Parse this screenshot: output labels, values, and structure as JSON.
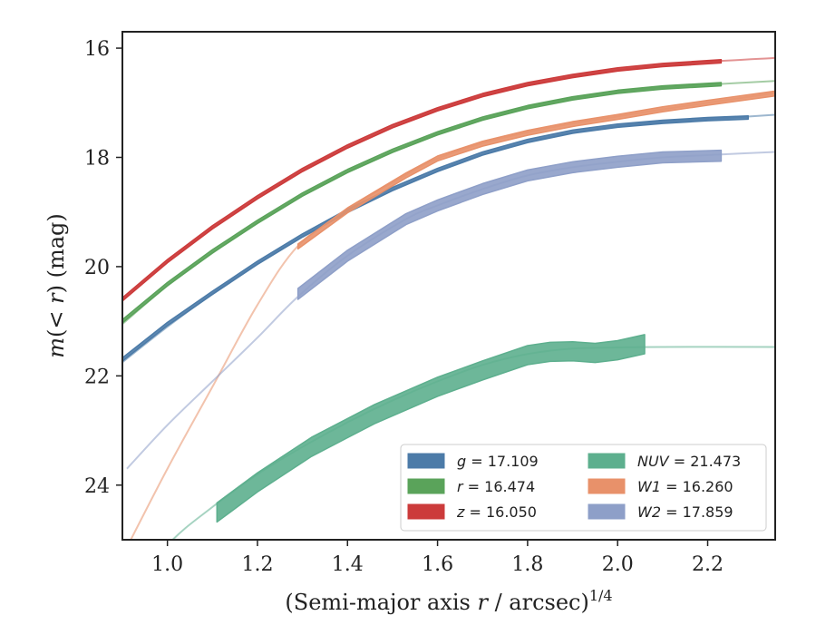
{
  "chart_data": {
    "type": "line",
    "title": "",
    "xlabel_main": "(Semi-major axis ",
    "xlabel_var": "r",
    "xlabel_rest": " / arcsec)",
    "xlabel_sup": "1/4",
    "ylabel_main": "m",
    "ylabel_mid": "(< ",
    "ylabel_var": "r",
    "ylabel_rest": ") (mag)",
    "xlim": [
      0.9,
      2.35
    ],
    "ylim": [
      25.0,
      15.7
    ],
    "y_inverted": true,
    "x_ticks": [
      {
        "value": 1.0,
        "label": "1.0"
      },
      {
        "value": 1.2,
        "label": "1.2"
      },
      {
        "value": 1.4,
        "label": "1.4"
      },
      {
        "value": 1.6,
        "label": "1.6"
      },
      {
        "value": 1.8,
        "label": "1.8"
      },
      {
        "value": 2.0,
        "label": "2.0"
      },
      {
        "value": 2.2,
        "label": "2.2"
      }
    ],
    "y_ticks": [
      {
        "value": 16,
        "label": "16"
      },
      {
        "value": 18,
        "label": "18"
      },
      {
        "value": 20,
        "label": "20"
      },
      {
        "value": 22,
        "label": "22"
      },
      {
        "value": 24,
        "label": "24"
      }
    ],
    "grid": false,
    "legend_position": "lower-right",
    "series": [
      {
        "key": "g",
        "legend_var": "g",
        "legend_value": "= 17.109",
        "color": "#4c7ba8",
        "model": [
          [
            0.9,
            21.75
          ],
          [
            1.0,
            21.1
          ],
          [
            1.1,
            20.5
          ],
          [
            1.2,
            19.95
          ],
          [
            1.3,
            19.45
          ],
          [
            1.4,
            19.0
          ],
          [
            1.5,
            18.6
          ],
          [
            1.6,
            18.25
          ],
          [
            1.7,
            17.95
          ],
          [
            1.8,
            17.72
          ],
          [
            1.9,
            17.55
          ],
          [
            2.0,
            17.43
          ],
          [
            2.1,
            17.35
          ],
          [
            2.2,
            17.3
          ],
          [
            2.35,
            17.22
          ]
        ],
        "data": [
          [
            0.9,
            21.7
          ],
          [
            1.0,
            21.05
          ],
          [
            1.1,
            20.48
          ],
          [
            1.2,
            19.93
          ],
          [
            1.3,
            19.43
          ],
          [
            1.4,
            18.98
          ],
          [
            1.5,
            18.58
          ],
          [
            1.6,
            18.23
          ],
          [
            1.7,
            17.93
          ],
          [
            1.8,
            17.7
          ],
          [
            1.9,
            17.53
          ],
          [
            2.0,
            17.42
          ],
          [
            2.1,
            17.35
          ],
          [
            2.2,
            17.3
          ],
          [
            2.29,
            17.27
          ]
        ],
        "data_width": 0.06
      },
      {
        "key": "r",
        "legend_var": "r",
        "legend_value": "= 16.474",
        "color": "#5aa35a",
        "model": [
          [
            0.9,
            21.05
          ],
          [
            1.0,
            20.35
          ],
          [
            1.1,
            19.75
          ],
          [
            1.2,
            19.2
          ],
          [
            1.3,
            18.7
          ],
          [
            1.4,
            18.27
          ],
          [
            1.5,
            17.9
          ],
          [
            1.6,
            17.57
          ],
          [
            1.7,
            17.3
          ],
          [
            1.8,
            17.08
          ],
          [
            1.9,
            16.92
          ],
          [
            2.0,
            16.8
          ],
          [
            2.1,
            16.72
          ],
          [
            2.2,
            16.67
          ],
          [
            2.35,
            16.6
          ]
        ],
        "data": [
          [
            0.9,
            21.0
          ],
          [
            1.0,
            20.32
          ],
          [
            1.1,
            19.72
          ],
          [
            1.2,
            19.18
          ],
          [
            1.3,
            18.68
          ],
          [
            1.4,
            18.25
          ],
          [
            1.5,
            17.88
          ],
          [
            1.6,
            17.56
          ],
          [
            1.7,
            17.29
          ],
          [
            1.8,
            17.08
          ],
          [
            1.9,
            16.92
          ],
          [
            2.0,
            16.8
          ],
          [
            2.1,
            16.72
          ],
          [
            2.23,
            16.66
          ]
        ],
        "data_width": 0.06
      },
      {
        "key": "z",
        "legend_var": "z",
        "legend_value": "= 16.050",
        "color": "#cc3b3b",
        "model": [
          [
            0.9,
            20.62
          ],
          [
            1.0,
            19.92
          ],
          [
            1.1,
            19.3
          ],
          [
            1.2,
            18.75
          ],
          [
            1.3,
            18.25
          ],
          [
            1.4,
            17.82
          ],
          [
            1.5,
            17.45
          ],
          [
            1.6,
            17.13
          ],
          [
            1.7,
            16.87
          ],
          [
            1.8,
            16.67
          ],
          [
            1.9,
            16.52
          ],
          [
            2.0,
            16.4
          ],
          [
            2.1,
            16.32
          ],
          [
            2.2,
            16.25
          ],
          [
            2.35,
            16.18
          ]
        ],
        "data": [
          [
            0.9,
            20.6
          ],
          [
            1.0,
            19.9
          ],
          [
            1.1,
            19.28
          ],
          [
            1.2,
            18.73
          ],
          [
            1.3,
            18.23
          ],
          [
            1.4,
            17.8
          ],
          [
            1.5,
            17.43
          ],
          [
            1.6,
            17.12
          ],
          [
            1.7,
            16.86
          ],
          [
            1.8,
            16.66
          ],
          [
            1.9,
            16.51
          ],
          [
            2.0,
            16.39
          ],
          [
            2.1,
            16.31
          ],
          [
            2.23,
            16.24
          ]
        ],
        "data_width": 0.06
      },
      {
        "key": "NUV",
        "legend_var": "NUV",
        "legend_value": "= 21.473",
        "color": "#5daf8e",
        "model": [
          [
            0.9,
            26.2
          ],
          [
            1.0,
            25.1
          ],
          [
            1.1,
            24.4
          ],
          [
            1.2,
            23.8
          ],
          [
            1.3,
            23.3
          ],
          [
            1.4,
            22.85
          ],
          [
            1.5,
            22.45
          ],
          [
            1.6,
            22.1
          ],
          [
            1.7,
            21.8
          ],
          [
            1.8,
            21.6
          ],
          [
            1.9,
            21.5
          ],
          [
            2.0,
            21.48
          ],
          [
            2.1,
            21.47
          ],
          [
            2.35,
            21.47
          ]
        ],
        "data": [
          [
            1.11,
            24.5
          ],
          [
            1.2,
            23.95
          ],
          [
            1.32,
            23.3
          ],
          [
            1.46,
            22.7
          ],
          [
            1.6,
            22.2
          ],
          [
            1.7,
            21.9
          ],
          [
            1.8,
            21.62
          ],
          [
            1.85,
            21.56
          ],
          [
            1.9,
            21.55
          ],
          [
            1.95,
            21.58
          ],
          [
            2.0,
            21.53
          ],
          [
            2.06,
            21.42
          ]
        ],
        "data_width": 0.35
      },
      {
        "key": "W1",
        "legend_var": "W1",
        "legend_value": "= 16.260",
        "color": "#e8916a",
        "model": [
          [
            0.9,
            25.3
          ],
          [
            1.0,
            23.7
          ],
          [
            1.1,
            22.2
          ],
          [
            1.2,
            20.7
          ],
          [
            1.29,
            19.62
          ],
          [
            1.4,
            18.95
          ],
          [
            1.53,
            18.32
          ],
          [
            1.6,
            18.02
          ],
          [
            1.7,
            17.74
          ],
          [
            1.8,
            17.54
          ],
          [
            1.9,
            17.38
          ],
          [
            2.0,
            17.25
          ],
          [
            2.1,
            17.12
          ],
          [
            2.2,
            17.0
          ],
          [
            2.35,
            16.82
          ]
        ],
        "data": [
          [
            1.29,
            19.63
          ],
          [
            1.4,
            18.97
          ],
          [
            1.53,
            18.33
          ],
          [
            1.6,
            18.02
          ],
          [
            1.7,
            17.75
          ],
          [
            1.8,
            17.55
          ],
          [
            1.9,
            17.39
          ],
          [
            2.0,
            17.26
          ],
          [
            2.1,
            17.12
          ],
          [
            2.2,
            17.0
          ],
          [
            2.35,
            16.83
          ]
        ],
        "data_width": 0.09
      },
      {
        "key": "W2",
        "legend_var": "W2",
        "legend_value": "= 17.859",
        "color": "#8e9fc8",
        "model": [
          [
            0.91,
            23.7
          ],
          [
            1.0,
            22.9
          ],
          [
            1.1,
            22.1
          ],
          [
            1.2,
            21.3
          ],
          [
            1.29,
            20.55
          ],
          [
            1.4,
            19.8
          ],
          [
            1.53,
            19.13
          ],
          [
            1.6,
            18.88
          ],
          [
            1.7,
            18.58
          ],
          [
            1.8,
            18.33
          ],
          [
            1.9,
            18.18
          ],
          [
            2.0,
            18.08
          ],
          [
            2.1,
            18.0
          ],
          [
            2.22,
            17.95
          ],
          [
            2.35,
            17.9
          ]
        ],
        "data": [
          [
            1.29,
            20.5
          ],
          [
            1.4,
            19.8
          ],
          [
            1.53,
            19.13
          ],
          [
            1.6,
            18.88
          ],
          [
            1.7,
            18.58
          ],
          [
            1.8,
            18.33
          ],
          [
            1.9,
            18.18
          ],
          [
            2.0,
            18.08
          ],
          [
            2.1,
            18.0
          ],
          [
            2.23,
            17.97
          ]
        ],
        "data_width": 0.2
      }
    ]
  }
}
